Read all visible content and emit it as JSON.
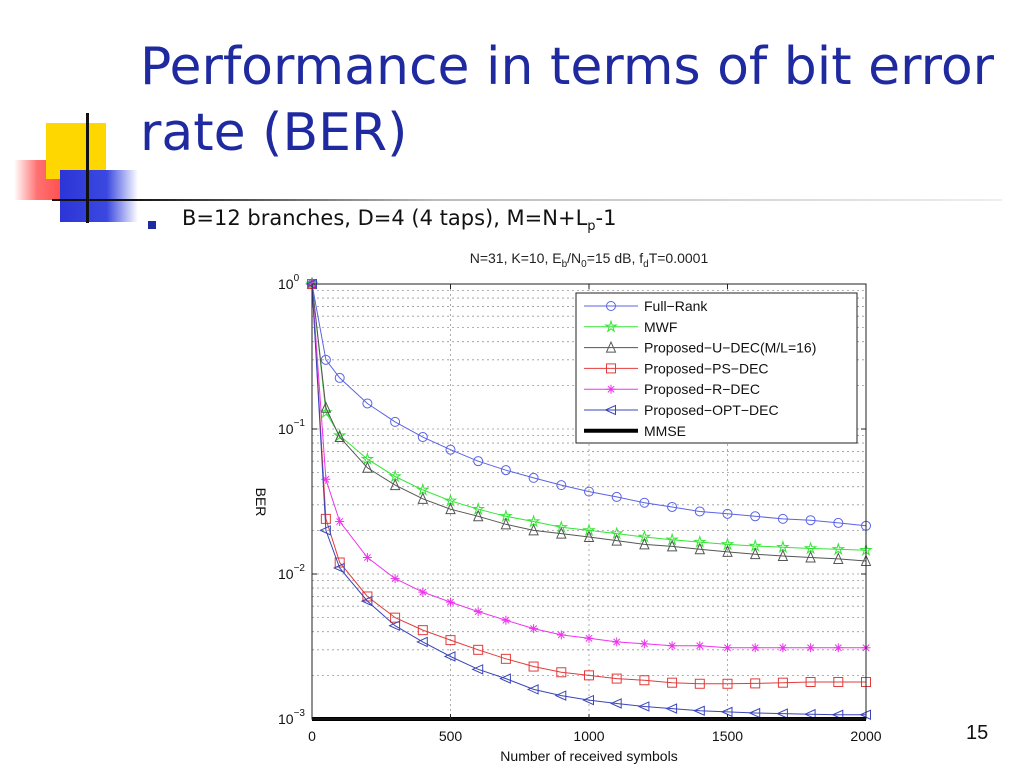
{
  "slide": {
    "title": "Performance in terms of bit error rate (BER)",
    "bullet_pre": "B=12 branches, D=4 (4 taps), M=N+L",
    "bullet_sub": "p",
    "bullet_post": "-1",
    "slide_number": "15"
  },
  "chart_data": {
    "type": "line",
    "title": {
      "t1": "N=31, K=10, E",
      "s1": "b",
      "t2": "/N",
      "s2": "0",
      "t3": "=15 dB, f",
      "s3": "d",
      "t4": "T=0.0001"
    },
    "xlabel": "Number of received symbols",
    "ylabel": "BER",
    "xlim": [
      0,
      2000
    ],
    "ylim": [
      0.001,
      1
    ],
    "yscale": "log",
    "grid": true,
    "legend_position": "top-right",
    "x_ticks": [
      "0",
      "500",
      "1000",
      "1500",
      "2000"
    ],
    "y_ticks": [
      {
        "base": "10",
        "exp": "0"
      },
      {
        "base": "10",
        "exp": "−1"
      },
      {
        "base": "10",
        "exp": "−2"
      },
      {
        "base": "10",
        "exp": "−3"
      }
    ],
    "x": [
      0,
      50,
      100,
      200,
      300,
      400,
      500,
      600,
      700,
      800,
      900,
      1000,
      1100,
      1200,
      1300,
      1400,
      1500,
      1600,
      1700,
      1800,
      1900,
      2000
    ],
    "series": [
      {
        "name": "Full−Rank",
        "color": "#5a63e6",
        "marker": "circle",
        "values": [
          1.0,
          0.3,
          0.225,
          0.15,
          0.112,
          0.088,
          0.072,
          0.06,
          0.052,
          0.046,
          0.041,
          0.037,
          0.034,
          0.031,
          0.029,
          0.027,
          0.026,
          0.025,
          0.024,
          0.0235,
          0.0225,
          0.0215
        ]
      },
      {
        "name": "MWF",
        "color": "#33e633",
        "marker": "star",
        "values": [
          1.0,
          0.13,
          0.09,
          0.062,
          0.047,
          0.038,
          0.032,
          0.028,
          0.025,
          0.023,
          0.021,
          0.02,
          0.019,
          0.018,
          0.0172,
          0.0166,
          0.016,
          0.0156,
          0.0153,
          0.015,
          0.0148,
          0.0146
        ]
      },
      {
        "name": "Proposed−U−DEC(M/L=16)",
        "color": "#555555",
        "marker": "triangle-up",
        "values": [
          1.0,
          0.14,
          0.088,
          0.054,
          0.041,
          0.033,
          0.028,
          0.025,
          0.022,
          0.02,
          0.019,
          0.018,
          0.017,
          0.016,
          0.0155,
          0.0148,
          0.0142,
          0.0137,
          0.0133,
          0.013,
          0.0127,
          0.0123
        ]
      },
      {
        "name": "Proposed−PS−DEC",
        "color": "#e23b3b",
        "marker": "square",
        "values": [
          1.0,
          0.024,
          0.012,
          0.007,
          0.005,
          0.0041,
          0.0035,
          0.003,
          0.0026,
          0.0023,
          0.0021,
          0.002,
          0.0019,
          0.00185,
          0.00178,
          0.00175,
          0.00175,
          0.00176,
          0.00178,
          0.0018,
          0.0018,
          0.0018
        ]
      },
      {
        "name": "Proposed−R−DEC",
        "color": "#ee33ee",
        "marker": "asterisk",
        "values": [
          1.0,
          0.045,
          0.023,
          0.013,
          0.0093,
          0.0075,
          0.0064,
          0.0055,
          0.0048,
          0.0042,
          0.0038,
          0.0036,
          0.0034,
          0.0033,
          0.0032,
          0.0032,
          0.0031,
          0.0031,
          0.0031,
          0.0031,
          0.0031,
          0.0031
        ]
      },
      {
        "name": "Proposed−OPT−DEC",
        "color": "#3a45b8",
        "marker": "triangle-left",
        "values": [
          1.0,
          0.02,
          0.011,
          0.0065,
          0.0044,
          0.0034,
          0.0027,
          0.0022,
          0.0019,
          0.0016,
          0.00145,
          0.00135,
          0.00128,
          0.00122,
          0.00118,
          0.00114,
          0.00112,
          0.0011,
          0.00109,
          0.00108,
          0.00107,
          0.00107
        ]
      },
      {
        "name": "MMSE",
        "color": "#000000",
        "marker": "none",
        "thick": true,
        "values": [
          0.001,
          0.001,
          0.001,
          0.001,
          0.001,
          0.001,
          0.001,
          0.001,
          0.001,
          0.001,
          0.001,
          0.001,
          0.001,
          0.001,
          0.001,
          0.001,
          0.001,
          0.001,
          0.001,
          0.001,
          0.001,
          0.001
        ]
      }
    ]
  }
}
